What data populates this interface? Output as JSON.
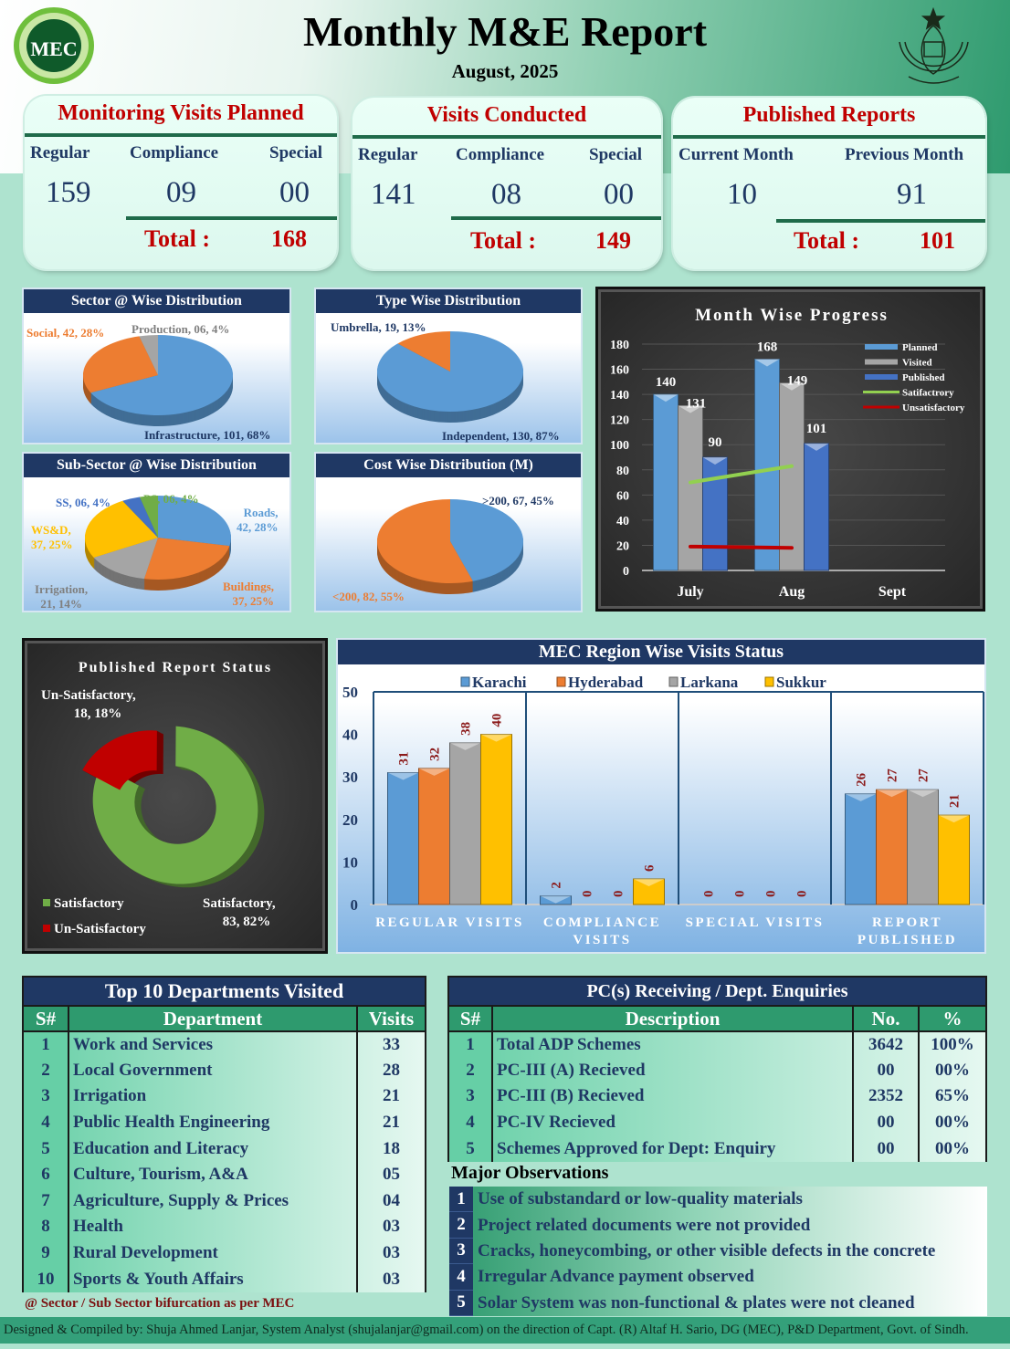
{
  "header": {
    "title": "Monthly M&E Report",
    "subtitle": "August, 2025",
    "logo_text": "MEC",
    "seal": "Government of Sindh seal"
  },
  "cards": [
    {
      "title": "Monitoring Visits Planned",
      "columns": [
        {
          "label": "Regular",
          "value": "159"
        },
        {
          "label": "Compliance",
          "value": "09"
        },
        {
          "label": "Special",
          "value": "00"
        }
      ],
      "total_label": "Total :",
      "total": "168"
    },
    {
      "title": "Visits Conducted",
      "columns": [
        {
          "label": "Regular",
          "value": "141"
        },
        {
          "label": "Compliance",
          "value": "08"
        },
        {
          "label": "Special",
          "value": "00"
        }
      ],
      "total_label": "Total :",
      "total": "149"
    },
    {
      "title": "Published Reports",
      "columns": [
        {
          "label": "Current Month",
          "value": "10"
        },
        {
          "label": "Previous Month",
          "value": "91"
        }
      ],
      "total_label": "Total :",
      "total": "101"
    }
  ],
  "colors": {
    "blue": "#5b9bd5",
    "orange": "#ed7d31",
    "grey": "#a5a5a5",
    "yellow": "#ffc000",
    "darkblue": "#4472c4",
    "green": "#70ad47",
    "navy": "#1f3864",
    "red": "#c00000",
    "teal": "#2e9a6e"
  },
  "chart_data": [
    {
      "id": "sector",
      "type": "pie",
      "title": "Sector @ Wise Distribution",
      "slices": [
        {
          "label": "Infrastructure",
          "value": 101,
          "display": "101",
          "pct": 68,
          "color": "#5b9bd5"
        },
        {
          "label": "Social",
          "value": 42,
          "display": "42",
          "pct": 28,
          "color": "#ed7d31"
        },
        {
          "label": "Production",
          "value": 6,
          "display": "06",
          "pct": 4,
          "color": "#a5a5a5"
        }
      ]
    },
    {
      "id": "type",
      "type": "pie",
      "title": "Type Wise Distribution",
      "slices": [
        {
          "label": "Independent",
          "value": 130,
          "display": "130",
          "pct": 87,
          "color": "#5b9bd5"
        },
        {
          "label": "Umbrella",
          "value": 19,
          "display": "19",
          "pct": 13,
          "color": "#ed7d31"
        }
      ]
    },
    {
      "id": "subsector",
      "type": "pie",
      "title": "Sub-Sector @ Wise Distribution",
      "slices": [
        {
          "label": "Roads",
          "value": 42,
          "display": "42",
          "pct": 28,
          "color": "#5b9bd5"
        },
        {
          "label": "Buildings",
          "value": 37,
          "display": "37",
          "pct": 25,
          "color": "#ed7d31"
        },
        {
          "label": "Irrigation",
          "value": 21,
          "display": "21",
          "pct": 14,
          "color": "#a5a5a5"
        },
        {
          "label": "WS&D",
          "value": 37,
          "display": "37",
          "pct": 25,
          "color": "#ffc000"
        },
        {
          "label": "SS",
          "value": 6,
          "display": "06",
          "pct": 4,
          "color": "#4472c4"
        },
        {
          "label": "PS",
          "value": 6,
          "display": "06",
          "pct": 4,
          "color": "#70ad47"
        }
      ]
    },
    {
      "id": "cost",
      "type": "pie",
      "title": "Cost Wise Distribution (M)",
      "slices": [
        {
          "label": ">200",
          "value": 67,
          "display": "67",
          "pct": 45,
          "color": "#5b9bd5"
        },
        {
          "label": "<200",
          "value": 82,
          "display": "82",
          "pct": 55,
          "color": "#ed7d31"
        }
      ]
    },
    {
      "id": "month",
      "type": "bar",
      "title": "Month Wise Progress",
      "categories": [
        "July",
        "Aug",
        "Sept"
      ],
      "ylim": [
        0,
        180
      ],
      "yticks": [
        0,
        20,
        40,
        60,
        80,
        100,
        120,
        140,
        160,
        180
      ],
      "series": [
        {
          "name": "Planned",
          "values": [
            140,
            168,
            null
          ],
          "color": "#5b9bd5"
        },
        {
          "name": "Visited",
          "values": [
            131,
            149,
            null
          ],
          "color": "#a5a5a5"
        },
        {
          "name": "Published",
          "values": [
            90,
            101,
            null
          ],
          "color": "#4472c4"
        }
      ],
      "lines": [
        {
          "name": "Satifactrory",
          "values": [
            70,
            83
          ],
          "color": "#92d050"
        },
        {
          "name": "Unsatisfactory",
          "values": [
            19,
            18
          ],
          "color": "#c00000"
        }
      ],
      "legend": "top-right"
    },
    {
      "id": "status",
      "type": "pie",
      "title": "Published Report Status",
      "slices": [
        {
          "label": "Satisfactory",
          "value": 83,
          "display": "83",
          "pct": 82,
          "color": "#70ad47"
        },
        {
          "label": "Un-Satisfactory",
          "value": 18,
          "display": "18",
          "pct": 18,
          "color": "#c00000"
        }
      ],
      "legend": "bottom-left"
    },
    {
      "id": "region",
      "type": "bar",
      "title": "MEC Region Wise Visits Status",
      "categories": [
        "REGULAR VISITS",
        "COMPLIANCE VISITS",
        "SPECIAL VISITS",
        "REPORT PUBLISHED"
      ],
      "ylim": [
        0,
        50
      ],
      "yticks": [
        0,
        10,
        20,
        30,
        40,
        50
      ],
      "series": [
        {
          "name": "Karachi",
          "values": [
            31,
            2,
            0,
            26
          ],
          "color": "#5b9bd5"
        },
        {
          "name": "Hyderabad",
          "values": [
            32,
            0,
            0,
            27
          ],
          "color": "#ed7d31"
        },
        {
          "name": "Larkana",
          "values": [
            38,
            0,
            0,
            27
          ],
          "color": "#a5a5a5"
        },
        {
          "name": "Sukkur",
          "values": [
            40,
            6,
            0,
            21
          ],
          "color": "#ffc000"
        }
      ],
      "legend": "top"
    }
  ],
  "departments": {
    "title": "Top 10 Departments Visited",
    "headers": [
      "S#",
      "Department",
      "Visits"
    ],
    "rows": [
      [
        "1",
        "Work and Services",
        "33"
      ],
      [
        "2",
        "Local Government",
        "28"
      ],
      [
        "3",
        "Irrigation",
        "21"
      ],
      [
        "4",
        "Public Health Engineering",
        "21"
      ],
      [
        "5",
        "Education and Literacy",
        "18"
      ],
      [
        "6",
        "Culture, Tourism,  A&A",
        "05"
      ],
      [
        "7",
        "Agriculture, Supply & Prices",
        "04"
      ],
      [
        "8",
        "Health",
        "03"
      ],
      [
        "9",
        "Rural Development",
        "03"
      ],
      [
        "10",
        "Sports & Youth Affairs",
        "03"
      ]
    ],
    "footnote": "@ Sector / Sub Sector bifurcation as per MEC"
  },
  "pc": {
    "title": "PC(s) Receiving / Dept. Enquiries",
    "headers": [
      "S#",
      "Description",
      "No.",
      "%"
    ],
    "rows": [
      [
        "1",
        "Total ADP Schemes",
        "3642",
        "100%"
      ],
      [
        "2",
        "PC-III (A) Recieved",
        "00",
        "00%"
      ],
      [
        "3",
        "PC-III (B) Recieved",
        "2352",
        "65%"
      ],
      [
        "4",
        "PC-IV Recieved",
        "00",
        "00%"
      ],
      [
        "5",
        "Schemes Approved for Dept: Enquiry",
        "00",
        "00%"
      ]
    ]
  },
  "observations": {
    "title": "Major Observations",
    "items": [
      "Use of substandard or low-quality materials",
      "Project related documents were not provided",
      "Cracks, honeycombing, or other visible defects in the concrete",
      "Irregular Advance payment observed",
      "Solar System was non-functional & plates were not cleaned"
    ]
  },
  "footer": "Designed & Compiled by: Shuja Ahmed Lanjar, System Analyst (shujalanjar@gmail.com) on the direction of Capt. (R) Altaf H. Sario, DG (MEC), P&D Department, Govt. of Sindh."
}
